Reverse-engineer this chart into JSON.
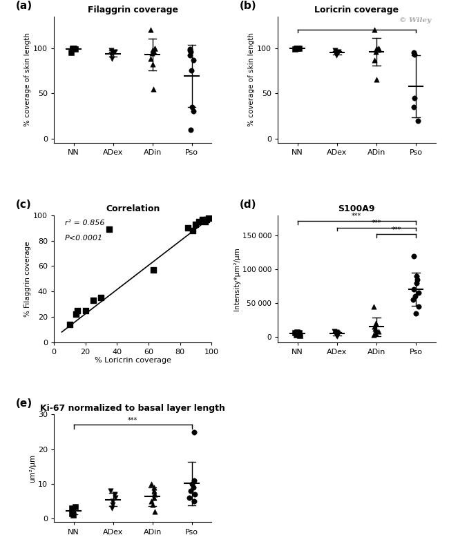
{
  "fig_width": 6.5,
  "fig_height": 7.88,
  "panel_a": {
    "title": "Filaggrin coverage",
    "ylabel": "% coverage of skin length",
    "categories": [
      "NN",
      "ADex",
      "ADin",
      "Pso"
    ],
    "ylim": [
      -5,
      135
    ],
    "yticks": [
      0,
      50,
      100
    ],
    "points": {
      "NN": {
        "y": [
          100,
          100,
          100,
          99,
          95
        ],
        "marker": "s"
      },
      "ADex": {
        "y": [
          97,
          96,
          95,
          93,
          88
        ],
        "marker": "v"
      },
      "ADin": {
        "y": [
          120,
          100,
          100,
          98,
          96,
          94,
          88,
          82,
          55
        ],
        "marker": "^"
      },
      "Pso": {
        "y": [
          99,
          97,
          96,
          92,
          87,
          75,
          35,
          30,
          10
        ],
        "marker": "o"
      }
    },
    "mean_line_half": 0.18,
    "error_bar_half": 0.1
  },
  "panel_b": {
    "title": "Loricrin coverage",
    "ylabel": "% coverage of skin length",
    "categories": [
      "NN",
      "ADex",
      "ADin",
      "Pso"
    ],
    "ylim": [
      -5,
      135
    ],
    "yticks": [
      0,
      50,
      100
    ],
    "sig_bar_y": 120,
    "sig_bar_tick": 3,
    "points": {
      "NN": {
        "y": [
          100,
          100,
          100,
          100,
          99
        ],
        "marker": "s"
      },
      "ADex": {
        "y": [
          97,
          96,
          95,
          94,
          92
        ],
        "marker": "v"
      },
      "ADin": {
        "y": [
          120,
          100,
          100,
          100,
          98,
          96,
          87,
          65
        ],
        "marker": "^"
      },
      "Pso": {
        "y": [
          95,
          93,
          45,
          35,
          20
        ],
        "marker": "o"
      }
    },
    "mean_line_half": 0.18,
    "error_bar_half": 0.1
  },
  "panel_c": {
    "title": "Correlation",
    "xlabel": "% Loricrin coverage",
    "ylabel": "% Filaggrin coverage",
    "r2_text": "r² = 0.856",
    "pval_text": "P<0.0001",
    "xlim": [
      0,
      100
    ],
    "ylim": [
      0,
      100
    ],
    "xticks": [
      0,
      20,
      40,
      60,
      80,
      100
    ],
    "yticks": [
      0,
      20,
      40,
      60,
      80,
      100
    ],
    "scatter_x": [
      10,
      14,
      15,
      20,
      25,
      30,
      35,
      63,
      85,
      88,
      90,
      92,
      94,
      96,
      97,
      98
    ],
    "scatter_y": [
      14,
      22,
      25,
      25,
      33,
      35,
      89,
      57,
      90,
      88,
      93,
      95,
      97,
      95,
      97,
      98
    ],
    "line_x": [
      5,
      98
    ],
    "line_y": [
      8,
      97
    ]
  },
  "panel_d": {
    "title": "S100A9",
    "ylabel": "Intensity*μm²/μm",
    "categories": [
      "NN",
      "ADex",
      "ADin",
      "Pso"
    ],
    "ylim": [
      -8000,
      180000
    ],
    "yticks": [
      0,
      50000,
      100000,
      150000
    ],
    "ytick_labels": [
      "0",
      "50 000",
      "100 000",
      "150 000"
    ],
    "sig_bars": [
      {
        "from": 0,
        "to": 3,
        "y": 172000,
        "label": "***"
      },
      {
        "from": 1,
        "to": 3,
        "y": 162000,
        "label": "***"
      },
      {
        "from": 2,
        "to": 3,
        "y": 152000,
        "label": "***"
      }
    ],
    "points": {
      "NN": {
        "y": [
          2000,
          3000,
          4000,
          5000,
          5500,
          6000,
          7000
        ],
        "marker": "s"
      },
      "ADex": {
        "y": [
          1000,
          2000,
          3000,
          4000,
          5000,
          6000,
          7000,
          8000
        ],
        "marker": "v"
      },
      "ADin": {
        "y": [
          3000,
          5000,
          8000,
          10000,
          12000,
          15000,
          20000,
          45000
        ],
        "marker": "^"
      },
      "Pso": {
        "y": [
          35000,
          45000,
          55000,
          60000,
          65000,
          70000,
          80000,
          85000,
          90000,
          120000
        ],
        "marker": "o"
      }
    },
    "mean_line_half": 0.18,
    "error_bar_half": 0.1
  },
  "panel_e": {
    "title": "Ki-67 normalized to basal layer length",
    "ylabel": "um²/μm",
    "categories": [
      "NN",
      "ADex",
      "ADin",
      "Pso"
    ],
    "ylim": [
      -1,
      30
    ],
    "yticks": [
      0,
      10,
      20,
      30
    ],
    "sig_bar": {
      "from": 0,
      "to": 3,
      "y": 27,
      "label": "***"
    },
    "points": {
      "NN": {
        "y": [
          1,
          1.5,
          2,
          2.5,
          3,
          3.5
        ],
        "marker": "s"
      },
      "ADex": {
        "y": [
          3,
          4,
          5,
          6,
          7,
          8
        ],
        "marker": "v"
      },
      "ADin": {
        "y": [
          2,
          4,
          5,
          6,
          7,
          8,
          9,
          10
        ],
        "marker": "^"
      },
      "Pso": {
        "y": [
          5,
          6,
          7,
          8,
          9,
          10,
          11,
          25
        ],
        "marker": "o"
      }
    },
    "mean_line_half": 0.18,
    "error_bar_half": 0.1
  },
  "wiley_text": "© Wiley",
  "marker_size": 28,
  "lw_mean": 1.5,
  "lw_err": 1.0
}
